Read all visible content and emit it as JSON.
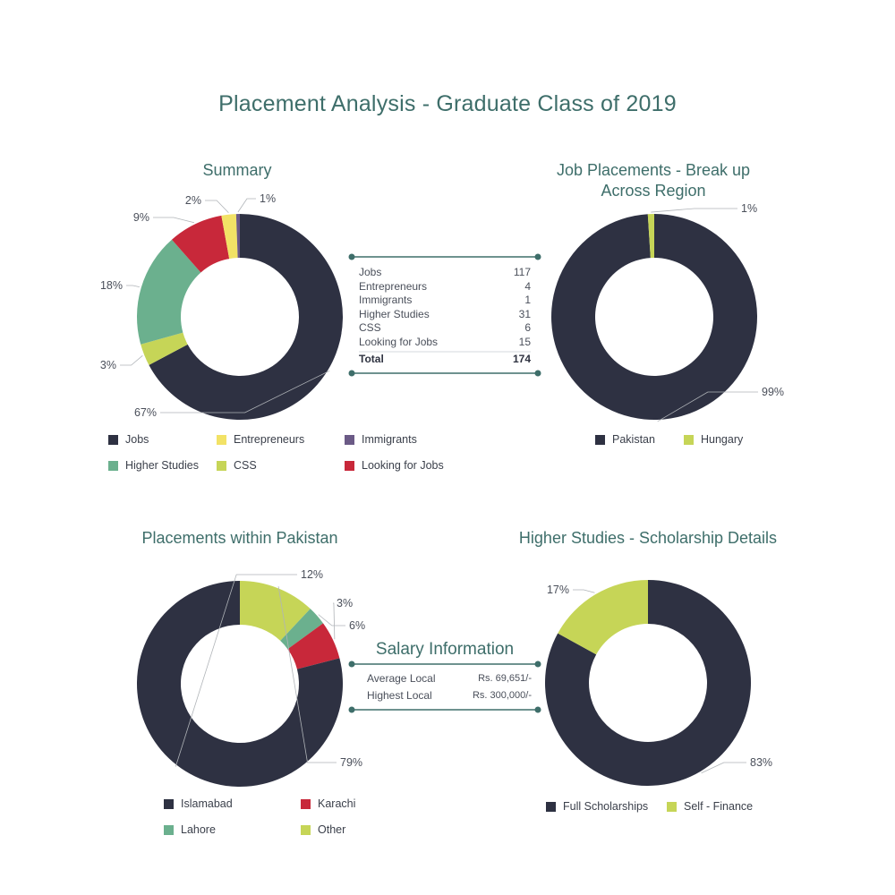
{
  "title": "Placement Analysis - Graduate Class of 2019",
  "chart_data": [
    {
      "type": "pie",
      "title": "Summary",
      "categories": [
        "Jobs",
        "Entrepreneurs",
        "Immigrants",
        "Higher Studies",
        "CSS",
        "Looking for Jobs"
      ],
      "values": [
        117,
        4,
        1,
        31,
        6,
        15
      ],
      "colors": [
        "#2e3142",
        "#f2e266",
        "#6b5a86",
        "#6bb08e",
        "#c6d557",
        "#c8283a"
      ],
      "segment_order": [
        0,
        4,
        3,
        5,
        1,
        2
      ],
      "percent_labels": [
        "67%",
        "3%",
        "18%",
        "9%",
        "2%",
        "1%"
      ],
      "legend_order": [
        0,
        1,
        2,
        3,
        4,
        5
      ]
    },
    {
      "type": "pie",
      "title": "Job Placements - Break up Across Region",
      "categories": [
        "Pakistan",
        "Hungary"
      ],
      "values": [
        99,
        1
      ],
      "colors": [
        "#2e3142",
        "#c6d557"
      ],
      "segment_order": [
        0,
        1
      ],
      "percent_labels": [
        "99%",
        "1%"
      ],
      "legend_order": [
        0,
        1
      ]
    },
    {
      "type": "pie",
      "title": "Placements within Pakistan",
      "categories": [
        "Islamabad",
        "Karachi",
        "Lahore",
        "Other"
      ],
      "values": [
        79,
        6,
        3,
        12
      ],
      "colors": [
        "#2e3142",
        "#c8283a",
        "#6bb08e",
        "#c6d557"
      ],
      "segment_order": [
        3,
        2,
        1,
        0
      ],
      "percent_labels": [
        "79%",
        "6%",
        "3%",
        "12%"
      ],
      "legend_order": [
        0,
        1,
        2,
        3
      ]
    },
    {
      "type": "pie",
      "title": "Higher Studies - Scholarship Details",
      "categories": [
        "Full Scholarships",
        "Self - Finance"
      ],
      "values": [
        83,
        17
      ],
      "colors": [
        "#2e3142",
        "#c6d557"
      ],
      "segment_order": [
        0,
        1
      ],
      "percent_labels": [
        "83%",
        "17%"
      ],
      "legend_order": [
        0,
        1
      ]
    }
  ],
  "summary_table": {
    "rows": [
      {
        "label": "Jobs",
        "value": "117"
      },
      {
        "label": "Entrepreneurs",
        "value": "4"
      },
      {
        "label": "Immigrants",
        "value": "1"
      },
      {
        "label": "Higher Studies",
        "value": "31"
      },
      {
        "label": "CSS",
        "value": "6"
      },
      {
        "label": "Looking for Jobs",
        "value": "15"
      }
    ],
    "total_label": "Total",
    "total_value": "174"
  },
  "salary": {
    "title": "Salary Information",
    "rows": [
      {
        "label": "Average Local",
        "value": "Rs. 69,651/-"
      },
      {
        "label": "Highest Local",
        "value": "Rs. 300,000/-"
      }
    ]
  }
}
